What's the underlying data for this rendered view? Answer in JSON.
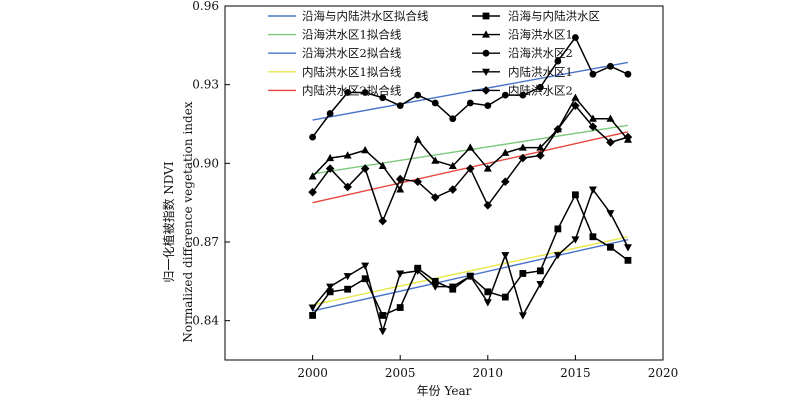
{
  "chart_data": {
    "type": "line",
    "title": "",
    "xlabel": "年份 Year",
    "ylabel": "归一化植被指数 NDVI",
    "ylabel2": "Normalized difference vegetation index",
    "xlim": [
      1995,
      2020
    ],
    "ylim": [
      0.825,
      0.96
    ],
    "xticks": [
      2000,
      2005,
      2010,
      2015,
      2020
    ],
    "yticks": [
      0.84,
      0.87,
      0.9,
      0.93,
      0.96
    ],
    "ytick_labels": [
      "0.84",
      "0.87",
      "0.90",
      "0.93",
      "0.96"
    ],
    "grid": false,
    "legend_position": "top",
    "x": [
      2000,
      2001,
      2002,
      2003,
      2004,
      2005,
      2006,
      2007,
      2008,
      2009,
      2010,
      2011,
      2012,
      2013,
      2014,
      2015,
      2016,
      2017,
      2018
    ],
    "series": [
      {
        "name": "沿海与内陆洪水区",
        "marker": "square",
        "color": "#000000",
        "values": [
          0.842,
          0.851,
          0.852,
          0.856,
          0.842,
          0.845,
          0.86,
          0.855,
          0.852,
          0.857,
          0.851,
          0.849,
          0.858,
          0.859,
          0.875,
          0.888,
          0.872,
          0.868,
          0.863
        ]
      },
      {
        "name": "沿海洪水区1",
        "marker": "triangle-up",
        "color": "#000000",
        "values": [
          0.895,
          0.902,
          0.903,
          0.905,
          0.899,
          0.89,
          0.909,
          0.901,
          0.899,
          0.906,
          0.898,
          0.904,
          0.906,
          0.906,
          0.913,
          0.925,
          0.917,
          0.917,
          0.909
        ]
      },
      {
        "name": "沿海洪水区2",
        "marker": "circle",
        "color": "#000000",
        "values": [
          0.91,
          0.919,
          0.927,
          0.927,
          0.925,
          0.922,
          0.926,
          0.923,
          0.917,
          0.923,
          0.922,
          0.926,
          0.926,
          0.929,
          0.939,
          0.948,
          0.934,
          0.937,
          0.934
        ]
      },
      {
        "name": "内陆洪水区1",
        "marker": "triangle-down",
        "color": "#000000",
        "values": [
          0.845,
          0.853,
          0.857,
          0.861,
          0.836,
          0.858,
          0.859,
          0.853,
          0.853,
          0.857,
          0.847,
          0.865,
          0.842,
          0.854,
          0.865,
          0.871,
          0.89,
          0.881,
          0.868
        ]
      },
      {
        "name": "内陆洪水区2",
        "marker": "diamond",
        "color": "#000000",
        "values": [
          0.889,
          0.898,
          0.891,
          0.898,
          0.878,
          0.894,
          0.893,
          0.887,
          0.89,
          0.898,
          0.884,
          0.893,
          0.902,
          0.903,
          0.913,
          0.922,
          0.914,
          0.908,
          0.91
        ]
      }
    ],
    "fit_lines": [
      {
        "name": "沿海与内陆洪水区拟合线",
        "color": "#4a74c9",
        "x": [
          2000,
          2018
        ],
        "values": [
          0.8437,
          0.8709
        ]
      },
      {
        "name": "沿海洪水区1拟合线",
        "color": "#7ec97e",
        "x": [
          2000,
          2018
        ],
        "values": [
          0.896,
          0.9145
        ]
      },
      {
        "name": "沿海洪水区2拟合线",
        "color": "#4a74c9",
        "x": [
          2000,
          2018
        ],
        "values": [
          0.9165,
          0.9385
        ]
      },
      {
        "name": "内陆洪水区1拟合线",
        "color": "#e8e84a",
        "x": [
          2000,
          2018
        ],
        "values": [
          0.846,
          0.872
        ]
      },
      {
        "name": "内陆洪水区2拟合线",
        "color": "#e8453c",
        "x": [
          2000,
          2018
        ],
        "values": [
          0.885,
          0.912
        ]
      }
    ]
  }
}
